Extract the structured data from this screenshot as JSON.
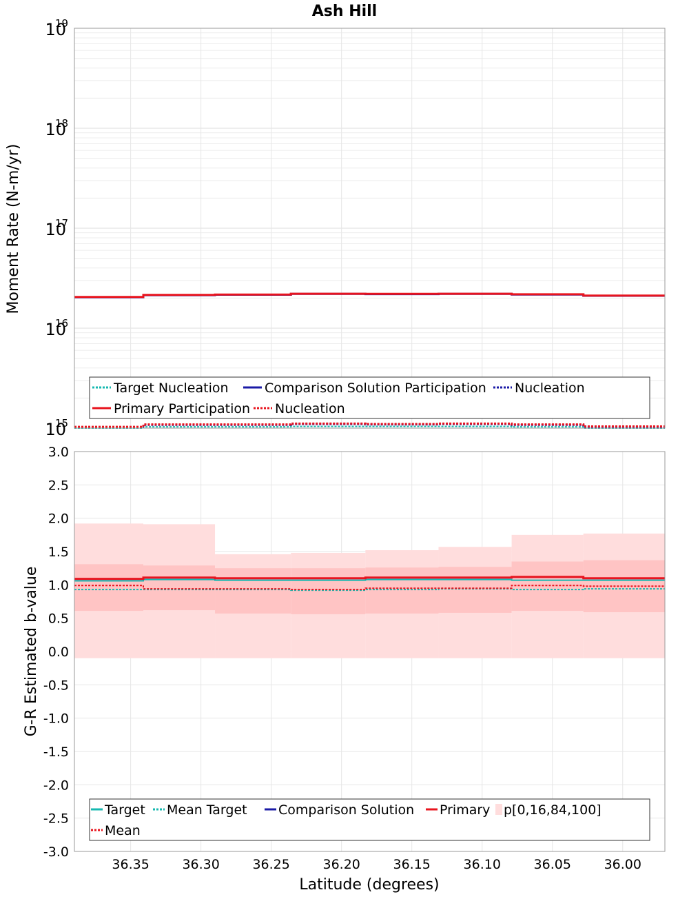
{
  "chart_data": [
    {
      "type": "line",
      "panel": "top",
      "title": "Ash Hill",
      "xlabel": "",
      "ylabel": "Moment Rate (N-m/yr)",
      "yscale": "log",
      "ylim_exp": [
        15,
        19
      ],
      "y_ticks": [
        {
          "base": "10",
          "exp": "15"
        },
        {
          "base": "10",
          "exp": "16"
        },
        {
          "base": "10",
          "exp": "17"
        },
        {
          "base": "10",
          "exp": "18"
        },
        {
          "base": "10",
          "exp": "19"
        }
      ],
      "xlim": [
        36.39,
        35.97
      ],
      "x_reversed": true,
      "x_edges": [
        36.39,
        36.341,
        36.29,
        36.236,
        36.183,
        36.131,
        36.079,
        36.028,
        35.97
      ],
      "series": [
        {
          "name": "Primary Participation",
          "color": "#e8141e",
          "style": "solid",
          "width": 3,
          "values": [
            2.05e+16,
            2.15e+16,
            2.17e+16,
            2.21e+16,
            2.2e+16,
            2.21e+16,
            2.18e+16,
            2.12e+16
          ]
        },
        {
          "name": "Comparison Solution Participation",
          "color": "#1a1aa6",
          "style": "solid",
          "width": 3,
          "values": [
            2.04e+16,
            2.14e+16,
            2.16e+16,
            2.2e+16,
            2.19e+16,
            2.2e+16,
            2.17e+16,
            2.11e+16
          ]
        },
        {
          "name": "Nucleation",
          "color": "#e8141e",
          "style": "dotted",
          "width": 3,
          "values": [
            1030000000000000.0,
            1090000000000000.0,
            1090000000000000.0,
            1110000000000000.0,
            1100000000000000.0,
            1110000000000000.0,
            1090000000000000.0,
            1040000000000000.0
          ]
        },
        {
          "name": "Nucleation",
          "color": "#1a1aa6",
          "style": "dotted",
          "width": 3,
          "values": [
            1020000000000000.0,
            1080000000000000.0,
            1080000000000000.0,
            1100000000000000.0,
            1090000000000000.0,
            1100000000000000.0,
            1080000000000000.0,
            1030000000000000.0
          ]
        },
        {
          "name": "Target Nucleation",
          "color": "#17b8b0",
          "style": "dotted",
          "width": 2,
          "values": [
            1000000000000000.0,
            1030000000000000.0,
            1030000000000000.0,
            1040000000000000.0,
            1040000000000000.0,
            1040000000000000.0,
            1030000000000000.0,
            1000000000000000.0
          ]
        }
      ],
      "legend_position": "bottom",
      "legend": [
        {
          "label": "Target Nucleation",
          "color": "#17b8b0",
          "style": "dotted"
        },
        {
          "label": "Comparison Solution Participation",
          "color": "#1a1aa6",
          "style": "solid"
        },
        {
          "label": "Nucleation",
          "color": "#1a1aa6",
          "style": "dotted"
        },
        {
          "label": "Primary Participation",
          "color": "#e8141e",
          "style": "solid"
        },
        {
          "label": "Nucleation",
          "color": "#e8141e",
          "style": "dotted"
        }
      ]
    },
    {
      "type": "line",
      "panel": "bottom",
      "xlabel": "Latitude (degrees)",
      "ylabel": "G-R Estimated b-value",
      "ylim": [
        -3.0,
        3.0
      ],
      "y_ticks": [
        "-3.0",
        "-2.5",
        "-2.0",
        "-1.5",
        "-1.0",
        "-0.5",
        "0.0",
        "0.5",
        "1.0",
        "1.5",
        "2.0",
        "2.5",
        "3.0"
      ],
      "xlim": [
        36.39,
        35.97
      ],
      "x_ticks": [
        "36.35",
        "36.30",
        "36.25",
        "36.20",
        "36.15",
        "36.10",
        "36.05",
        "36.00"
      ],
      "x_edges": [
        36.39,
        36.341,
        36.29,
        36.236,
        36.183,
        36.131,
        36.079,
        36.028,
        35.97
      ],
      "bands": {
        "name": "p[0,16,84,100]",
        "outer_color": "#ffdddd",
        "inner_color": "#ffc4c4",
        "p0": [
          -0.1,
          -0.1,
          -0.1,
          -0.1,
          -0.1,
          -0.1,
          -0.1,
          -0.1
        ],
        "p100": [
          1.92,
          1.91,
          1.46,
          1.48,
          1.52,
          1.57,
          1.75,
          1.77
        ],
        "p16": [
          0.61,
          0.62,
          0.57,
          0.56,
          0.57,
          0.58,
          0.61,
          0.59
        ],
        "p84": [
          1.31,
          1.29,
          1.25,
          1.25,
          1.26,
          1.27,
          1.35,
          1.37
        ]
      },
      "series": [
        {
          "name": "Primary",
          "color": "#e8141e",
          "style": "solid",
          "width": 3,
          "values": [
            1.09,
            1.11,
            1.1,
            1.1,
            1.11,
            1.11,
            1.12,
            1.1
          ]
        },
        {
          "name": "Comparison Solution",
          "color": "#1a1aa6",
          "style": "solid",
          "width": 2,
          "values": [
            1.085,
            1.105,
            1.095,
            1.095,
            1.105,
            1.105,
            1.115,
            1.095
          ]
        },
        {
          "name": "Target",
          "color": "#17b8b0",
          "style": "solid",
          "width": 2,
          "values": [
            1.06,
            1.08,
            1.07,
            1.07,
            1.08,
            1.08,
            1.07,
            1.07
          ]
        },
        {
          "name": "Mean",
          "color": "#e8141e",
          "style": "dotted",
          "width": 2,
          "values": [
            0.99,
            0.94,
            0.94,
            0.93,
            0.95,
            0.95,
            0.99,
            0.98
          ]
        },
        {
          "name": "Mean Target",
          "color": "#17b8b0",
          "style": "dotted",
          "width": 2,
          "values": [
            0.93,
            0.93,
            0.93,
            0.92,
            0.93,
            0.94,
            0.93,
            0.94
          ]
        }
      ],
      "legend_position": "bottom",
      "legend": [
        {
          "label": "Target",
          "color": "#17b8b0",
          "style": "solid"
        },
        {
          "label": "Mean Target",
          "color": "#17b8b0",
          "style": "dotted"
        },
        {
          "label": "Comparison Solution",
          "color": "#1a1aa6",
          "style": "solid"
        },
        {
          "label": "Primary",
          "color": "#e8141e",
          "style": "solid"
        },
        {
          "label": "p[0,16,84,100]",
          "color": "#ffdddd",
          "style": "patch"
        },
        {
          "label": "Mean",
          "color": "#e8141e",
          "style": "dotted"
        }
      ]
    }
  ]
}
